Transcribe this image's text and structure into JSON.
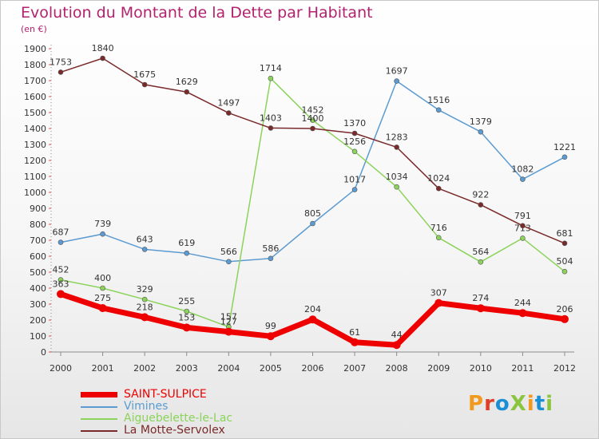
{
  "title": "Evolution du Montant de la Dette par Habitant",
  "subtitle": "(en €)",
  "logo": {
    "text": "ProXiti",
    "colors": [
      "#f29a1f",
      "#e23d28",
      "#1a8fd6",
      "#8bc53f",
      "#f29a1f",
      "#1a8fd6",
      "#8bc53f"
    ]
  },
  "chart_data": {
    "type": "line",
    "categories": [
      "2000",
      "2001",
      "2002",
      "2003",
      "2004",
      "2005",
      "2006",
      "2007",
      "2008",
      "2009",
      "2010",
      "2011",
      "2012"
    ],
    "ylim": [
      0,
      1900
    ],
    "yticks": [
      0,
      100,
      200,
      300,
      400,
      500,
      600,
      700,
      800,
      900,
      1000,
      1100,
      1200,
      1300,
      1400,
      1500,
      1600,
      1700,
      1800,
      1900
    ],
    "grid": false,
    "legend_position": "bottom-left",
    "series": [
      {
        "name": "SAINT-SULPICE",
        "color": "#ee0000",
        "values": [
          363,
          275,
          218,
          153,
          127,
          99,
          204,
          61,
          44,
          307,
          274,
          244,
          206
        ]
      },
      {
        "name": "Vimines",
        "color": "#5c9bd1",
        "values": [
          687,
          739,
          643,
          619,
          566,
          586,
          805,
          1017,
          1697,
          1516,
          1379,
          1082,
          1221
        ]
      },
      {
        "name": "Aiguebelette-le-Lac",
        "color": "#8bd35a",
        "values": [
          452,
          400,
          329,
          255,
          157,
          1714,
          1452,
          1256,
          1034,
          716,
          564,
          713,
          504
        ]
      },
      {
        "name": "La Motte-Servolex",
        "color": "#7a2a2a",
        "values": [
          1753,
          1840,
          1675,
          1629,
          1497,
          1403,
          1400,
          1370,
          1283,
          1024,
          922,
          791,
          681
        ]
      }
    ]
  }
}
